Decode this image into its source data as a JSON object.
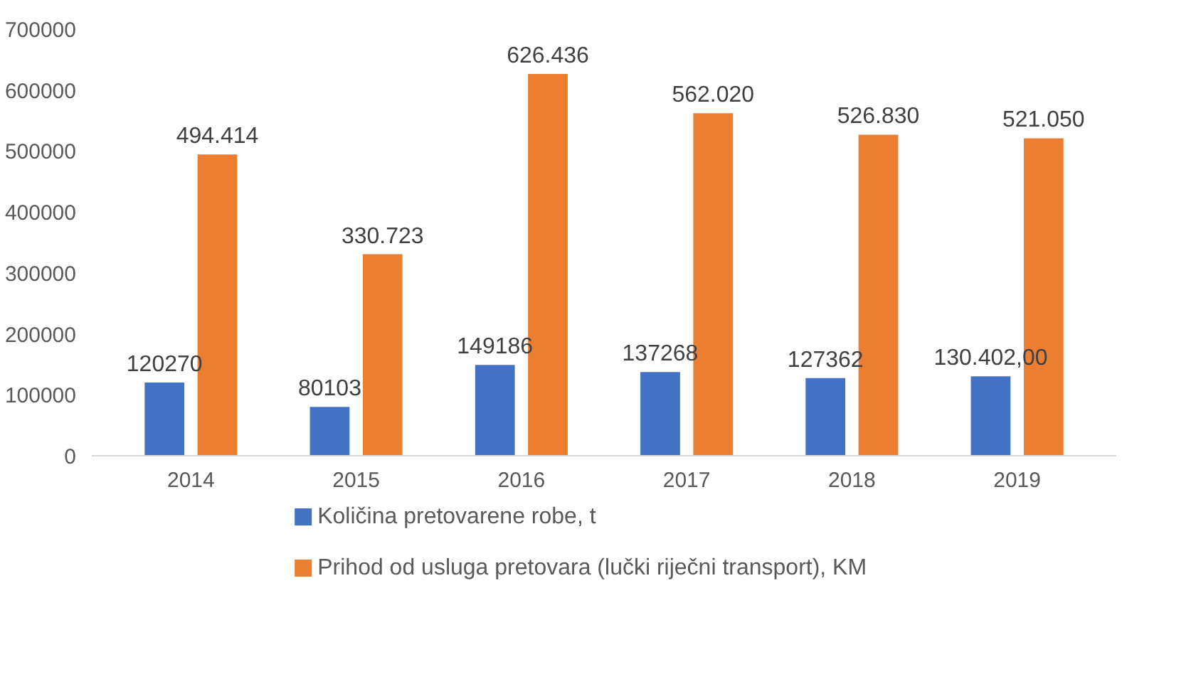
{
  "chart_data": {
    "type": "bar",
    "categories": [
      "2014",
      "2015",
      "2016",
      "2017",
      "2018",
      "2019"
    ],
    "series": [
      {
        "name": "Količina pretovarene robe, t",
        "color": "#4472c4",
        "values": [
          120270,
          80103,
          149186,
          137268,
          127362,
          130402
        ],
        "value_labels": [
          "120270",
          "80103",
          "149186",
          "137268",
          "127362",
          "130.402,00"
        ]
      },
      {
        "name": "Prihod od usluga pretovara (lučki riječni transport), KM",
        "color": "#ed7d31",
        "values": [
          494414,
          330723,
          626436,
          562020,
          526830,
          521050
        ],
        "value_labels": [
          "494.414",
          "330.723",
          "626.436",
          "562.020",
          "526.830",
          "521.050"
        ]
      }
    ],
    "ylim": [
      0,
      700000
    ],
    "yticks": [
      0,
      100000,
      200000,
      300000,
      400000,
      500000,
      600000,
      700000
    ],
    "grid": false,
    "legend": "bottom"
  }
}
